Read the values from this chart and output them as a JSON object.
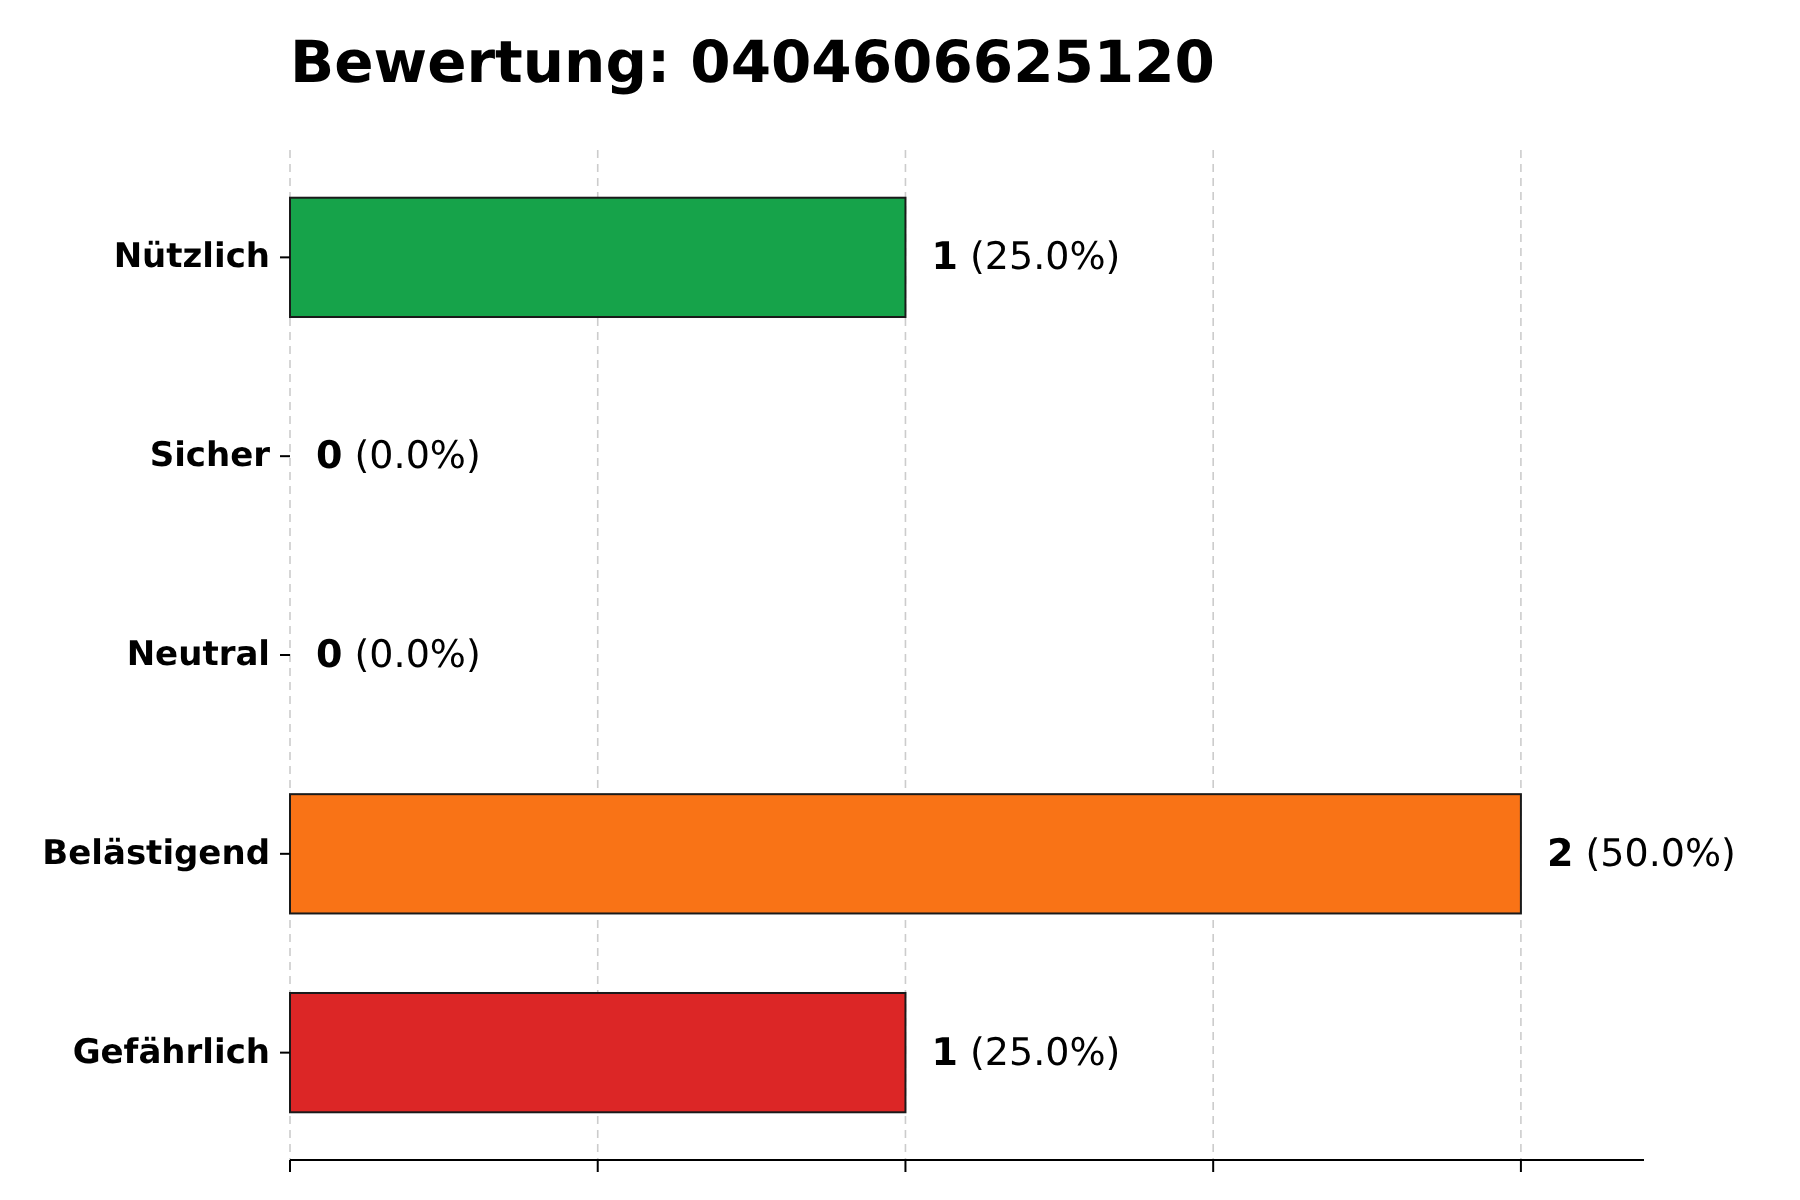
{
  "chart_data": {
    "type": "bar",
    "orientation": "horizontal",
    "title": "Bewertung: 0404606625120",
    "categories": [
      "Nützlich",
      "Sicher",
      "Neutral",
      "Belästigend",
      "Gefährlich"
    ],
    "values": [
      1,
      0,
      0,
      2,
      1
    ],
    "colors": [
      "#16a34a",
      "#2563eb",
      "#6b7280",
      "#f97316",
      "#dc2626"
    ],
    "value_labels": [
      "1 (25.0%)",
      "0 (0.0%)",
      "0 (0.0%)",
      "2 (50.0%)",
      "1 (25.0%)"
    ],
    "xlim": [
      0,
      2.2
    ],
    "xticks": [
      {
        "value": 0,
        "label": null
      },
      {
        "value": 0.5,
        "label": null
      },
      {
        "value": 1,
        "label": null
      },
      {
        "value": 1.5,
        "label": null
      },
      {
        "value": 2,
        "label": null
      }
    ],
    "grid": "x",
    "tick_labels": "y"
  }
}
